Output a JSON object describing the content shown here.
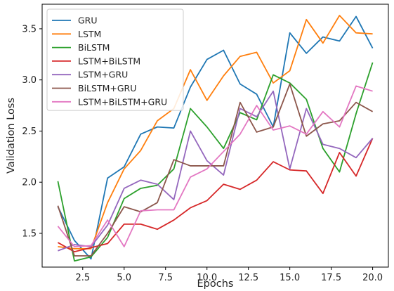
{
  "chart_data": {
    "type": "line",
    "xlabel": "Epochs",
    "ylabel": "Validation Loss",
    "xlim": [
      0.05,
      20.95
    ],
    "ylim": [
      1.17,
      3.74
    ],
    "xticks": [
      2.5,
      5.0,
      7.5,
      10.0,
      12.5,
      15.0,
      17.5,
      20.0
    ],
    "xtick_labels": [
      "2.5",
      "5.0",
      "7.5",
      "10.0",
      "12.5",
      "15.0",
      "17.5",
      "20.0"
    ],
    "yticks": [
      1.5,
      2.0,
      2.5,
      3.0,
      3.5
    ],
    "ytick_labels": [
      "1.5",
      "2.0",
      "2.5",
      "3.0",
      "3.5"
    ],
    "grid": false,
    "legend_position": "top-left",
    "x": [
      1,
      2,
      3,
      4,
      5,
      6,
      7,
      8,
      9,
      10,
      11,
      12,
      13,
      14,
      15,
      16,
      17,
      18,
      19,
      20
    ],
    "series": [
      {
        "name": "GRU",
        "color": "#1f77b4",
        "values": [
          1.76,
          1.43,
          1.25,
          2.04,
          2.15,
          2.47,
          2.54,
          2.53,
          2.93,
          3.2,
          3.29,
          2.96,
          2.86,
          2.54,
          3.46,
          3.26,
          3.42,
          3.38,
          3.62,
          3.31
        ]
      },
      {
        "name": "LSTM",
        "color": "#ff7f0e",
        "values": [
          1.37,
          1.35,
          1.35,
          1.8,
          2.13,
          2.31,
          2.6,
          2.72,
          3.1,
          2.8,
          3.04,
          3.23,
          3.27,
          2.97,
          3.09,
          3.59,
          3.36,
          3.63,
          3.46,
          3.45
        ]
      },
      {
        "name": "BiLSTM",
        "color": "#2ca02c",
        "values": [
          2.01,
          1.23,
          1.27,
          1.46,
          1.84,
          1.94,
          1.97,
          2.13,
          2.72,
          2.54,
          2.33,
          2.68,
          2.61,
          3.05,
          2.97,
          2.81,
          2.33,
          2.1,
          2.67,
          3.17
        ]
      },
      {
        "name": "LSTM+BiLSTM",
        "color": "#d62728",
        "values": [
          1.41,
          1.32,
          1.36,
          1.4,
          1.59,
          1.59,
          1.54,
          1.63,
          1.75,
          1.82,
          1.98,
          1.93,
          2.02,
          2.2,
          2.12,
          2.11,
          1.89,
          2.29,
          2.06,
          2.43
        ]
      },
      {
        "name": "LSTM+GRU",
        "color": "#9467bd",
        "values": [
          1.33,
          1.39,
          1.37,
          1.58,
          1.94,
          2.02,
          1.98,
          1.83,
          2.5,
          2.21,
          2.07,
          2.72,
          2.64,
          2.89,
          2.13,
          2.72,
          2.37,
          2.33,
          2.24,
          2.43
        ]
      },
      {
        "name": "BiLSTM+GRU",
        "color": "#8c564b",
        "values": [
          1.77,
          1.28,
          1.28,
          1.5,
          1.76,
          1.71,
          1.8,
          2.22,
          2.16,
          2.16,
          2.16,
          2.78,
          2.49,
          2.54,
          2.96,
          2.45,
          2.57,
          2.6,
          2.78,
          2.69
        ]
      },
      {
        "name": "LSTM+BiLSTM+GRU",
        "color": "#e377c2",
        "values": [
          1.57,
          1.37,
          1.38,
          1.63,
          1.37,
          1.72,
          1.73,
          1.73,
          2.05,
          2.13,
          2.3,
          2.47,
          2.75,
          2.51,
          2.55,
          2.47,
          2.69,
          2.54,
          2.94,
          2.89
        ]
      }
    ]
  }
}
